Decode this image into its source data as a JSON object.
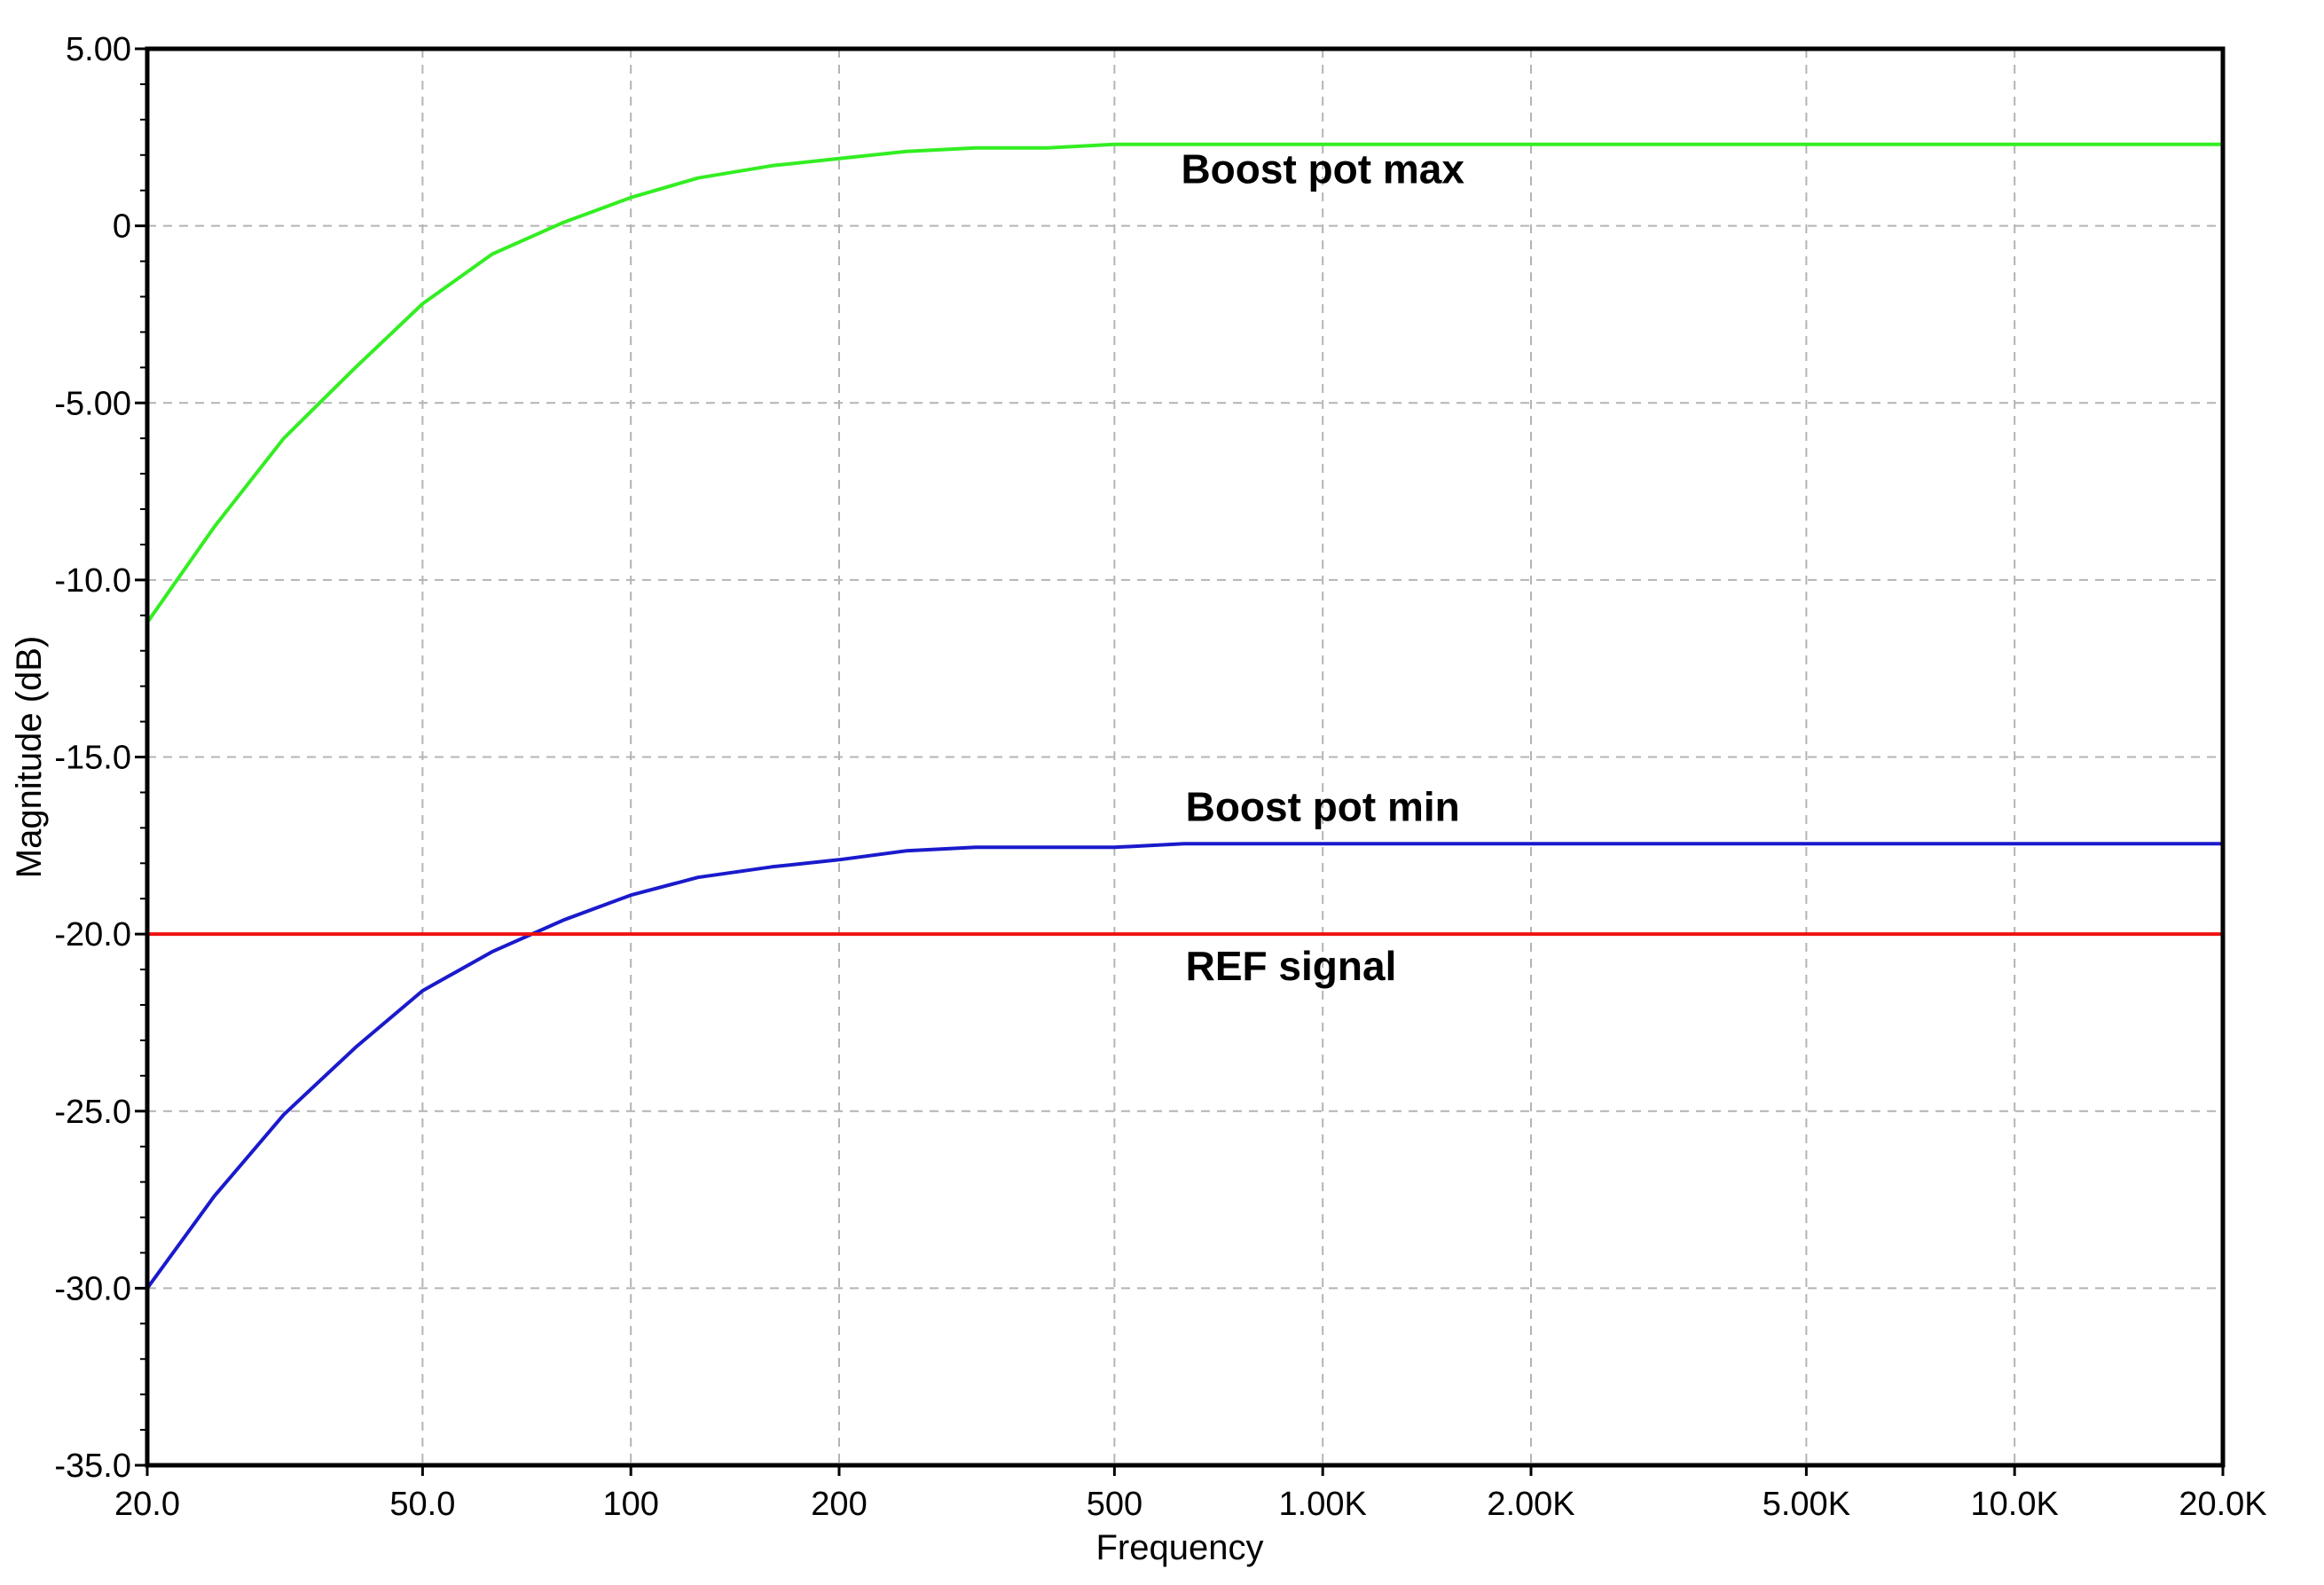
{
  "chart_data": {
    "type": "line",
    "xlabel": "Frequency",
    "ylabel": "Magnitude  (dB)",
    "xscale": "log",
    "xlim": [
      20,
      20000
    ],
    "ylim": [
      -35,
      5
    ],
    "grid": true,
    "x_ticks": [
      {
        "value": 20,
        "label": "20.0"
      },
      {
        "value": 50,
        "label": "50.0"
      },
      {
        "value": 100,
        "label": "100"
      },
      {
        "value": 200,
        "label": "200"
      },
      {
        "value": 500,
        "label": "500"
      },
      {
        "value": 1000,
        "label": "1.00K"
      },
      {
        "value": 2000,
        "label": "2.00K"
      },
      {
        "value": 5000,
        "label": "5.00K"
      },
      {
        "value": 10000,
        "label": "10.0K"
      },
      {
        "value": 20000,
        "label": "20.0K"
      }
    ],
    "y_ticks": [
      {
        "value": 5,
        "label": "5.00"
      },
      {
        "value": 0,
        "label": "0"
      },
      {
        "value": -5,
        "label": "-5.00"
      },
      {
        "value": -10,
        "label": "-10.0"
      },
      {
        "value": -15,
        "label": "-15.0"
      },
      {
        "value": -20,
        "label": "-20.0"
      },
      {
        "value": -25,
        "label": "-25.0"
      },
      {
        "value": -30,
        "label": "-30.0"
      },
      {
        "value": -35,
        "label": "-35.0"
      }
    ],
    "series": [
      {
        "name": "Boost pot max",
        "color": "#33ee22",
        "x": [
          20,
          25,
          31.5,
          40,
          50,
          63,
          80,
          100,
          125,
          160,
          200,
          250,
          315,
          400,
          500,
          630,
          1000,
          2000,
          5000,
          10000,
          20000
        ],
        "y": [
          -11.2,
          -8.5,
          -6.0,
          -4.0,
          -2.2,
          -0.8,
          0.1,
          0.8,
          1.35,
          1.7,
          1.9,
          2.1,
          2.2,
          2.2,
          2.3,
          2.3,
          2.3,
          2.3,
          2.3,
          2.3,
          2.3
        ]
      },
      {
        "name": "Boost pot min",
        "color": "#1a1acc",
        "x": [
          20,
          25,
          31.5,
          40,
          50,
          63,
          80,
          100,
          125,
          160,
          200,
          250,
          315,
          400,
          500,
          630,
          1000,
          2000,
          5000,
          10000,
          20000
        ],
        "y": [
          -30.0,
          -27.4,
          -25.1,
          -23.2,
          -21.6,
          -20.5,
          -19.6,
          -18.9,
          -18.4,
          -18.1,
          -17.9,
          -17.65,
          -17.55,
          -17.55,
          -17.55,
          -17.45,
          -17.45,
          -17.45,
          -17.45,
          -17.45,
          -17.45
        ]
      },
      {
        "name": "REF signal",
        "color": "#ee1111",
        "x": [
          20,
          20000
        ],
        "y": [
          -20.0,
          -20.0
        ]
      }
    ],
    "annotations": [
      {
        "text": "Boost pot max",
        "x": 1000,
        "y": 1.6
      },
      {
        "text": "Boost pot min",
        "x": 1000,
        "y": -16.4
      },
      {
        "text": "REF signal",
        "x": 900,
        "y": -20.9
      }
    ]
  }
}
